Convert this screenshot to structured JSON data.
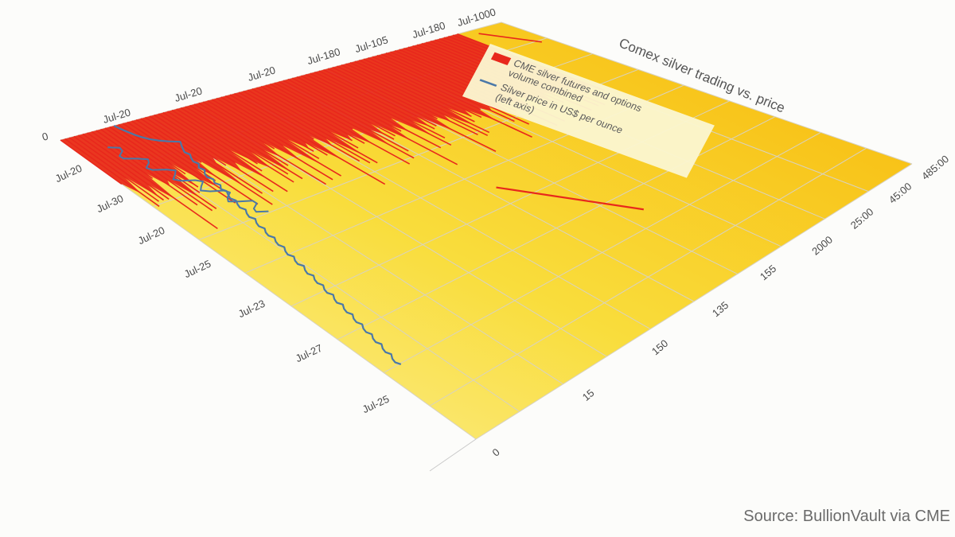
{
  "chart_data": {
    "type": "area",
    "title": "Comex silver trading vs. price",
    "legend": [
      {
        "label_line1": "CME silver futures and options",
        "label_line2": "volume combined",
        "color": "#e8281c"
      },
      {
        "label_line1": "Silver price in US$ per ounce",
        "label_line2": "(left axis)",
        "color": "#4a78a8"
      }
    ],
    "legend_placement": "top-right",
    "top_ticks": [
      "0",
      "Jul-20",
      "Jul-20",
      "Jul-20",
      "Jul-180",
      "Jul-105",
      "Jul-180",
      "Jul-1000"
    ],
    "left_ticks": [
      "Jul-20",
      "Jul-30",
      "Jul-20",
      "Jul-25",
      "Jul-23",
      "Jul-27",
      "Jul-25"
    ],
    "right_ticks": [
      "0",
      "15",
      "150",
      "135",
      "155",
      "2000",
      "25:00",
      "45:00",
      "485:00"
    ],
    "grid": true,
    "series": [
      {
        "name": "CME silver futures and options volume combined",
        "color": "#e8281c",
        "values": [
          32,
          40,
          28,
          45,
          36,
          50,
          30,
          42,
          38,
          55,
          34,
          48,
          29,
          44,
          52,
          36,
          47,
          31,
          58,
          40,
          35,
          49,
          43,
          60,
          33,
          46,
          54,
          38,
          62,
          41,
          50,
          36,
          57,
          44,
          65,
          39,
          52,
          47,
          68,
          42,
          56,
          49,
          70,
          45,
          58,
          52,
          66,
          48,
          72,
          55,
          63,
          50,
          75,
          57,
          68,
          54,
          78,
          60,
          71,
          58,
          82,
          62,
          74,
          66,
          85,
          61,
          77,
          69,
          88,
          72,
          80,
          75,
          90,
          70,
          83,
          78,
          92,
          76,
          86,
          80,
          95,
          84,
          88,
          90,
          97,
          86,
          93,
          91,
          99,
          94
        ],
        "overshoot_tail": [
          42,
          30,
          26,
          22
        ]
      },
      {
        "name": "Silver price in US$ per ounce",
        "color": "#4a78a8",
        "values": [
          18.2,
          18.5,
          18.9,
          19.4,
          19.8,
          20.6,
          21.5,
          22.9,
          24.8,
          27.1,
          26.2,
          25.4,
          24.7,
          25.1,
          24.2,
          23.6,
          24.0,
          22.8,
          23.3,
          22.1,
          21.6,
          22.2,
          21.4,
          21.9,
          20.8,
          21.3,
          20.5,
          19.9,
          20.4,
          19.6,
          19.1,
          19.6,
          18.7,
          18.2,
          18.8,
          17.9,
          17.4,
          17.9,
          17.0,
          16.6,
          17.2,
          16.3,
          15.9,
          16.4,
          15.5,
          15.0,
          15.6,
          14.7,
          14.3,
          14.9,
          14.0,
          13.5,
          14.1,
          13.2,
          12.8,
          13.3,
          12.4,
          12.0,
          12.6,
          11.7,
          11.2,
          11.8,
          10.9,
          10.5,
          11.0,
          10.1,
          9.7,
          10.2,
          9.3,
          8.9,
          9.4,
          8.5,
          8.1,
          8.6,
          7.7,
          7.3,
          7.8,
          6.9,
          6.5,
          7.0
        ]
      }
    ]
  },
  "source_note": "Source: BullionVault via CME"
}
